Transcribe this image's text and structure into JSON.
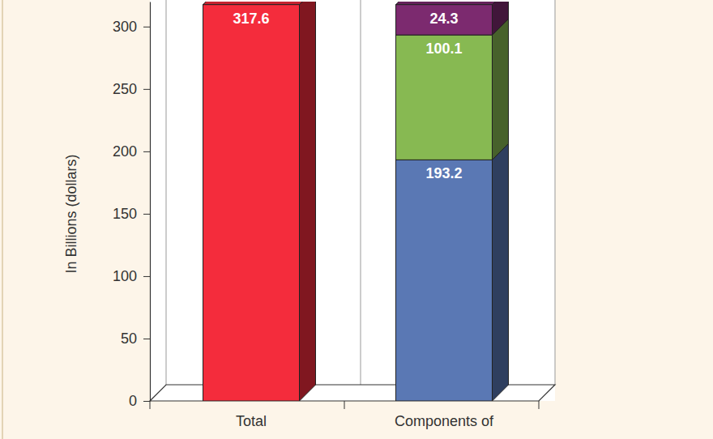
{
  "chart_data": {
    "type": "bar",
    "ylabel": "In Billions (dollars)",
    "categories": [
      "Total",
      "Components of"
    ],
    "series": [
      {
        "color": "#f42c3c",
        "values": [
          317.6,
          null
        ]
      },
      {
        "color": "#5a78b4",
        "values": [
          null,
          193.2
        ]
      },
      {
        "color": "#87b952",
        "values": [
          null,
          100.1
        ]
      },
      {
        "color": "#7c2a6f",
        "values": [
          null,
          24.3
        ]
      }
    ],
    "stacked": true,
    "data_labels": true,
    "grid": false,
    "ylim": [
      0,
      320
    ],
    "yticks": [
      0,
      50,
      100,
      150,
      200,
      250,
      300
    ]
  }
}
